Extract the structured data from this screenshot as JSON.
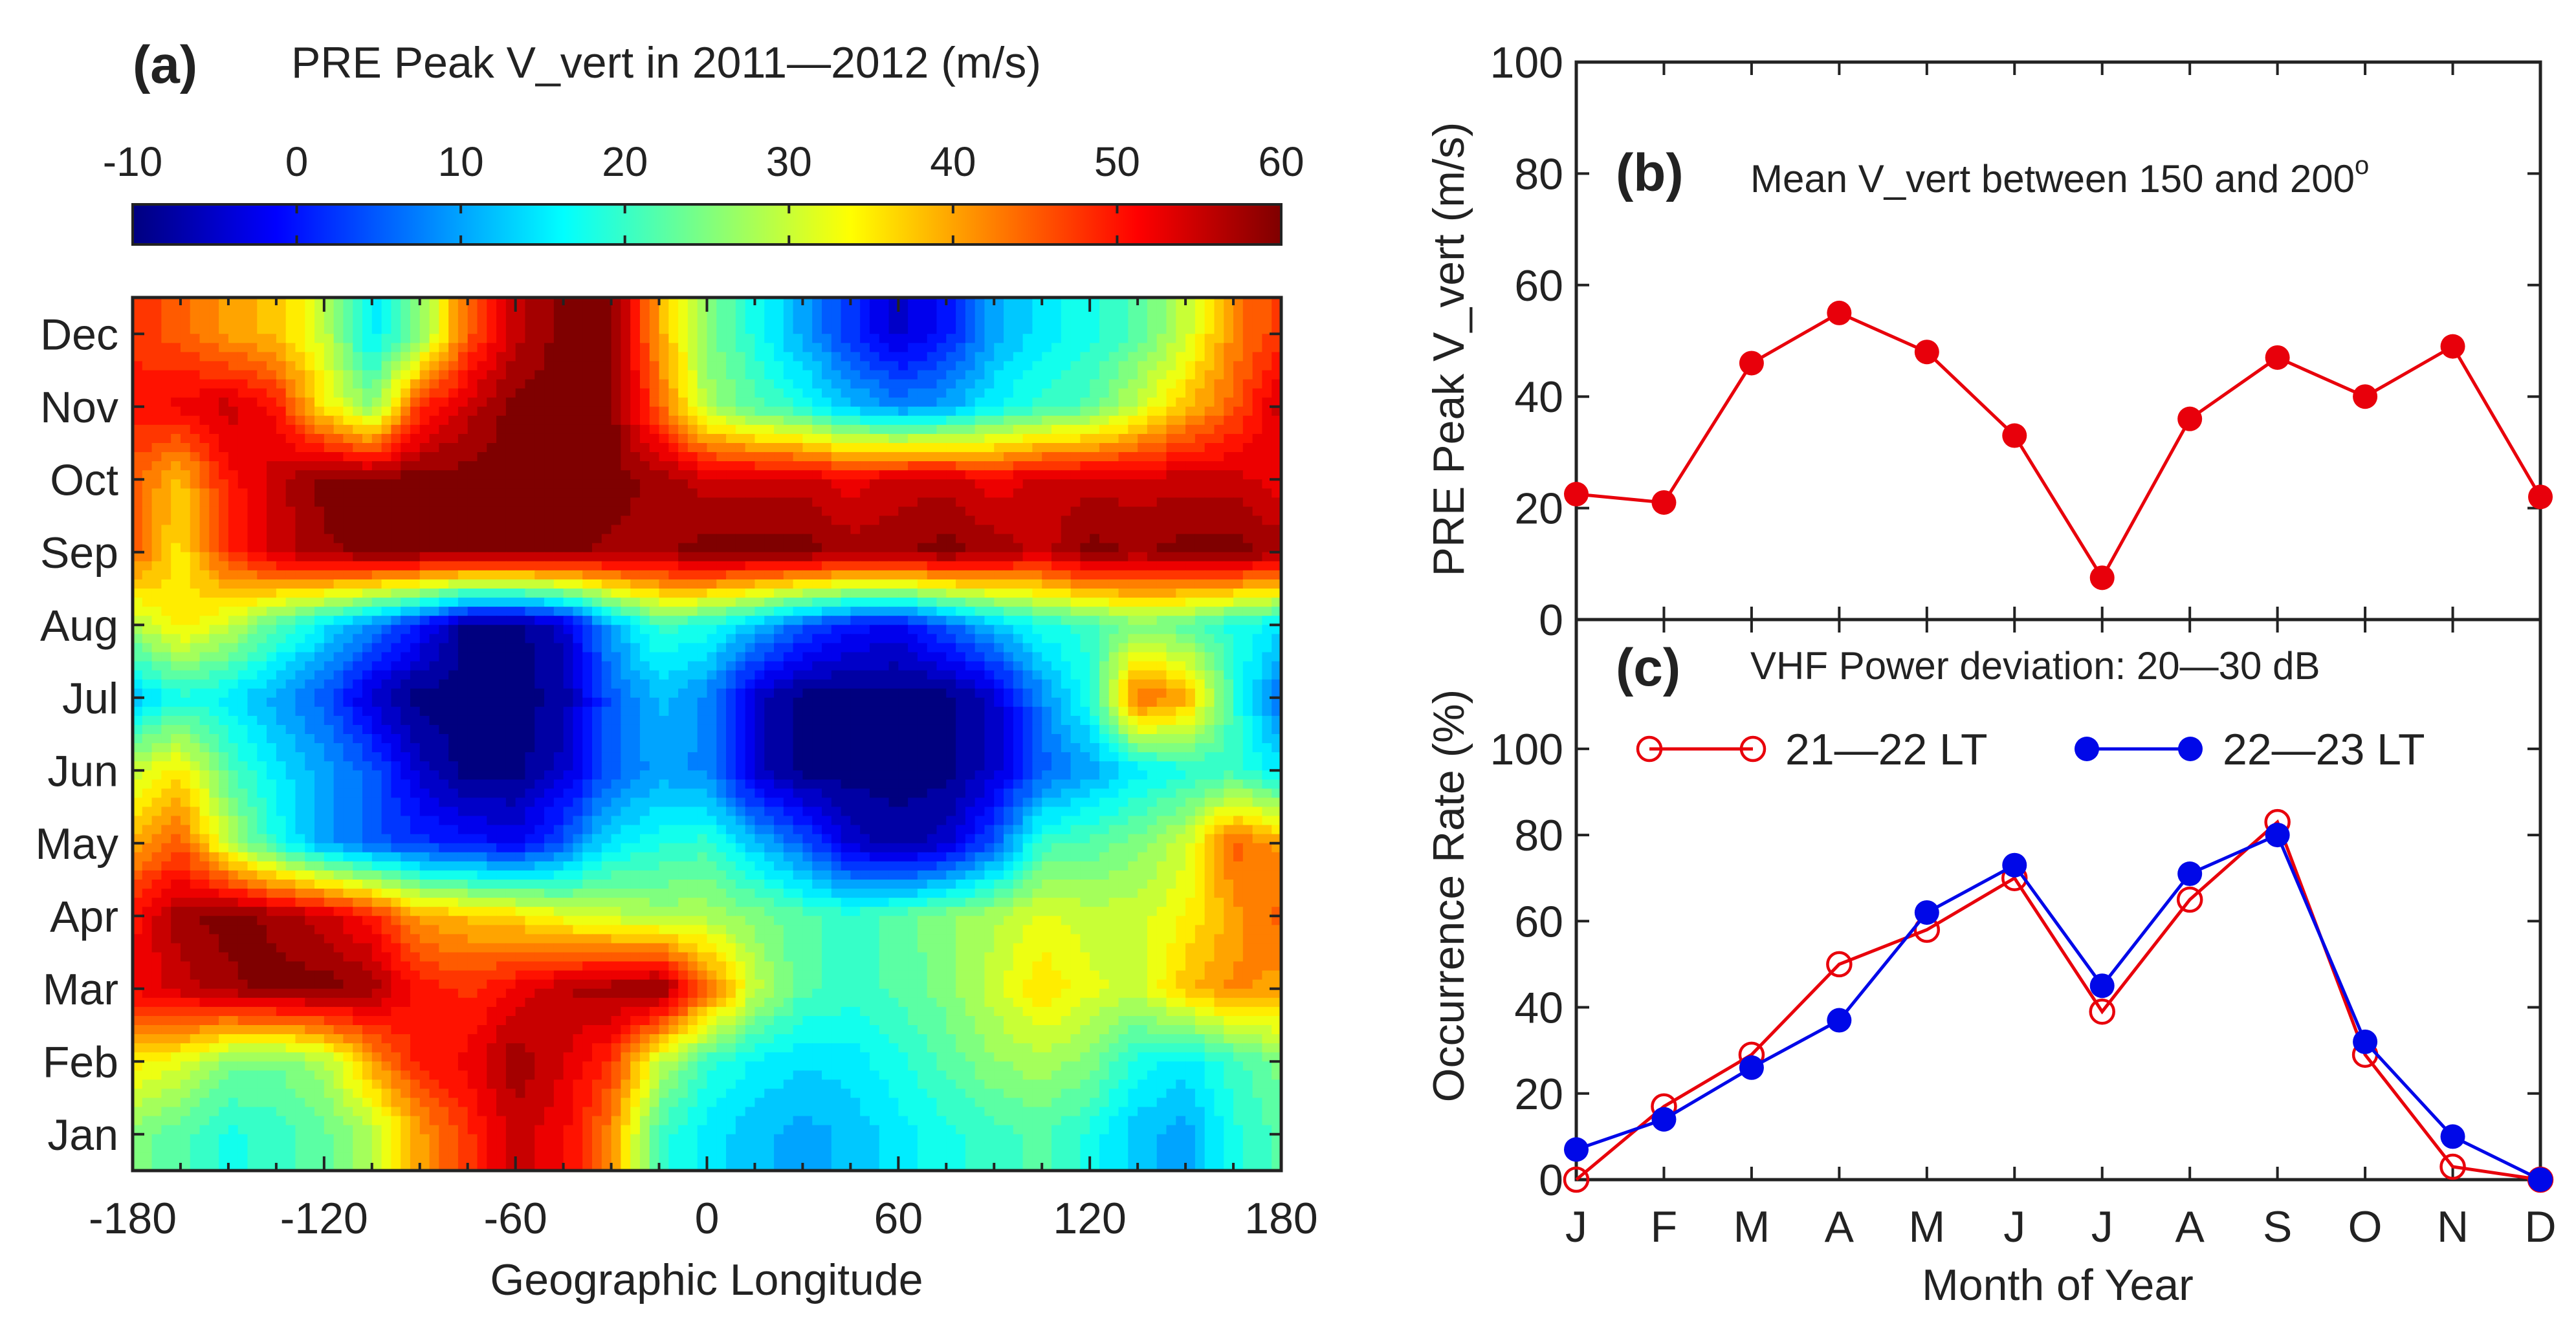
{
  "chart_data": [
    {
      "id": "a",
      "type": "heatmap",
      "panel_label": "(a)",
      "title": "PRE Peak V_vert in 2011—2012 (m/s)",
      "xlabel": "Geographic Longitude",
      "ylabel": "",
      "x": [
        -180,
        -165,
        -150,
        -135,
        -120,
        -105,
        -90,
        -75,
        -60,
        -45,
        -30,
        -15,
        0,
        15,
        30,
        45,
        60,
        75,
        90,
        105,
        120,
        135,
        150,
        165,
        180
      ],
      "y_categories": [
        "Jan",
        "Feb",
        "Mar",
        "Apr",
        "May",
        "Jun",
        "Jul",
        "Aug",
        "Sep",
        "Oct",
        "Nov",
        "Dec"
      ],
      "xlim": [
        -180,
        180
      ],
      "xticks": [
        "-180",
        "-120",
        "-60",
        "0",
        "60",
        "120",
        "180"
      ],
      "colorbar": {
        "range": [
          -10,
          60
        ],
        "ticks": [
          "-10",
          "0",
          "10",
          "20",
          "30",
          "40",
          "50",
          "60"
        ],
        "colormap": [
          "#00007f",
          "#0000ff",
          "#007fff",
          "#00ffff",
          "#7fff7f",
          "#ffff00",
          "#ff7f00",
          "#ff0000",
          "#7f0000"
        ]
      },
      "z": [
        [
          25,
          22,
          18,
          20,
          23,
          28,
          40,
          48,
          55,
          52,
          42,
          20,
          15,
          12,
          10,
          12,
          15,
          18,
          20,
          22,
          18,
          12,
          10,
          18,
          22
        ],
        [
          35,
          32,
          25,
          24,
          28,
          40,
          50,
          52,
          58,
          54,
          48,
          30,
          20,
          16,
          14,
          15,
          18,
          22,
          26,
          28,
          25,
          18,
          15,
          20,
          25
        ],
        [
          52,
          55,
          58,
          60,
          60,
          58,
          50,
          48,
          52,
          56,
          58,
          60,
          45,
          30,
          22,
          20,
          22,
          25,
          30,
          36,
          32,
          30,
          38,
          42,
          40
        ],
        [
          50,
          58,
          60,
          58,
          55,
          50,
          40,
          38,
          36,
          32,
          30,
          28,
          28,
          25,
          22,
          20,
          22,
          26,
          28,
          32,
          30,
          30,
          34,
          40,
          45
        ],
        [
          40,
          45,
          30,
          18,
          10,
          5,
          2,
          0,
          -2,
          5,
          15,
          18,
          20,
          12,
          5,
          -5,
          -8,
          -5,
          5,
          20,
          22,
          25,
          30,
          45,
          40
        ],
        [
          30,
          35,
          22,
          15,
          10,
          5,
          -5,
          -10,
          -10,
          -5,
          5,
          10,
          8,
          -5,
          -10,
          -10,
          -10,
          -10,
          -5,
          5,
          10,
          15,
          18,
          20,
          15
        ],
        [
          12,
          18,
          15,
          10,
          5,
          -5,
          -10,
          -10,
          -10,
          -8,
          5,
          12,
          8,
          -5,
          -10,
          -10,
          -10,
          -10,
          -5,
          8,
          18,
          45,
          40,
          20,
          5
        ],
        [
          28,
          35,
          30,
          22,
          15,
          8,
          0,
          -10,
          -10,
          -5,
          10,
          20,
          18,
          12,
          5,
          0,
          -2,
          5,
          12,
          18,
          20,
          25,
          22,
          18,
          15
        ],
        [
          45,
          35,
          48,
          55,
          58,
          60,
          60,
          60,
          60,
          60,
          58,
          58,
          60,
          60,
          60,
          58,
          58,
          60,
          58,
          55,
          60,
          58,
          60,
          60,
          58
        ],
        [
          45,
          38,
          50,
          55,
          60,
          60,
          60,
          60,
          60,
          60,
          60,
          58,
          55,
          55,
          55,
          52,
          55,
          55,
          52,
          55,
          55,
          55,
          55,
          55,
          52
        ],
        [
          50,
          52,
          55,
          50,
          35,
          25,
          48,
          55,
          60,
          60,
          60,
          45,
          28,
          22,
          18,
          12,
          8,
          10,
          16,
          20,
          22,
          30,
          38,
          45,
          55
        ],
        [
          48,
          45,
          40,
          38,
          30,
          15,
          25,
          45,
          55,
          60,
          60,
          40,
          25,
          18,
          10,
          2,
          -5,
          0,
          10,
          15,
          18,
          22,
          30,
          42,
          48
        ]
      ]
    },
    {
      "id": "b",
      "type": "line",
      "panel_label": "(b)",
      "title": "Mean V_vert between 150 and 200",
      "title_superscript": "o",
      "xlabel": "",
      "ylabel": "PRE Peak V_vert (m/s)",
      "categories": [
        "J",
        "F",
        "M",
        "A",
        "M",
        "J",
        "J",
        "A",
        "S",
        "O",
        "N",
        "D"
      ],
      "ylim": [
        0,
        100
      ],
      "yticks": [
        "0",
        "20",
        "40",
        "60",
        "80",
        "100"
      ],
      "series": [
        {
          "name": "Mean V_vert",
          "color": "#e8000b",
          "values": [
            22.5,
            21,
            46,
            55,
            48,
            33,
            7.5,
            36,
            47,
            40,
            49,
            22
          ]
        }
      ]
    },
    {
      "id": "c",
      "type": "line",
      "panel_label": "(c)",
      "title": "VHF Power deviation: 20—30 dB",
      "xlabel": "Month of Year",
      "ylabel": "Occurrence Rate (%)",
      "categories": [
        "J",
        "F",
        "M",
        "A",
        "M",
        "J",
        "J",
        "A",
        "S",
        "O",
        "N",
        "D"
      ],
      "ylim": [
        0,
        130
      ],
      "yticks": [
        "0",
        "20",
        "40",
        "60",
        "80",
        "100"
      ],
      "legend_position": "top",
      "series": [
        {
          "name": "21—22 LT",
          "color": "#e8000b",
          "marker": "open-circle",
          "values": [
            0,
            17,
            29,
            50,
            58,
            70,
            39,
            65,
            83,
            29,
            3,
            0
          ]
        },
        {
          "name": "22—23 LT",
          "color": "#0008e8",
          "marker": "filled-circle",
          "values": [
            7,
            14,
            26,
            37,
            62,
            73,
            45,
            71,
            80,
            32,
            10,
            0
          ]
        }
      ]
    }
  ]
}
